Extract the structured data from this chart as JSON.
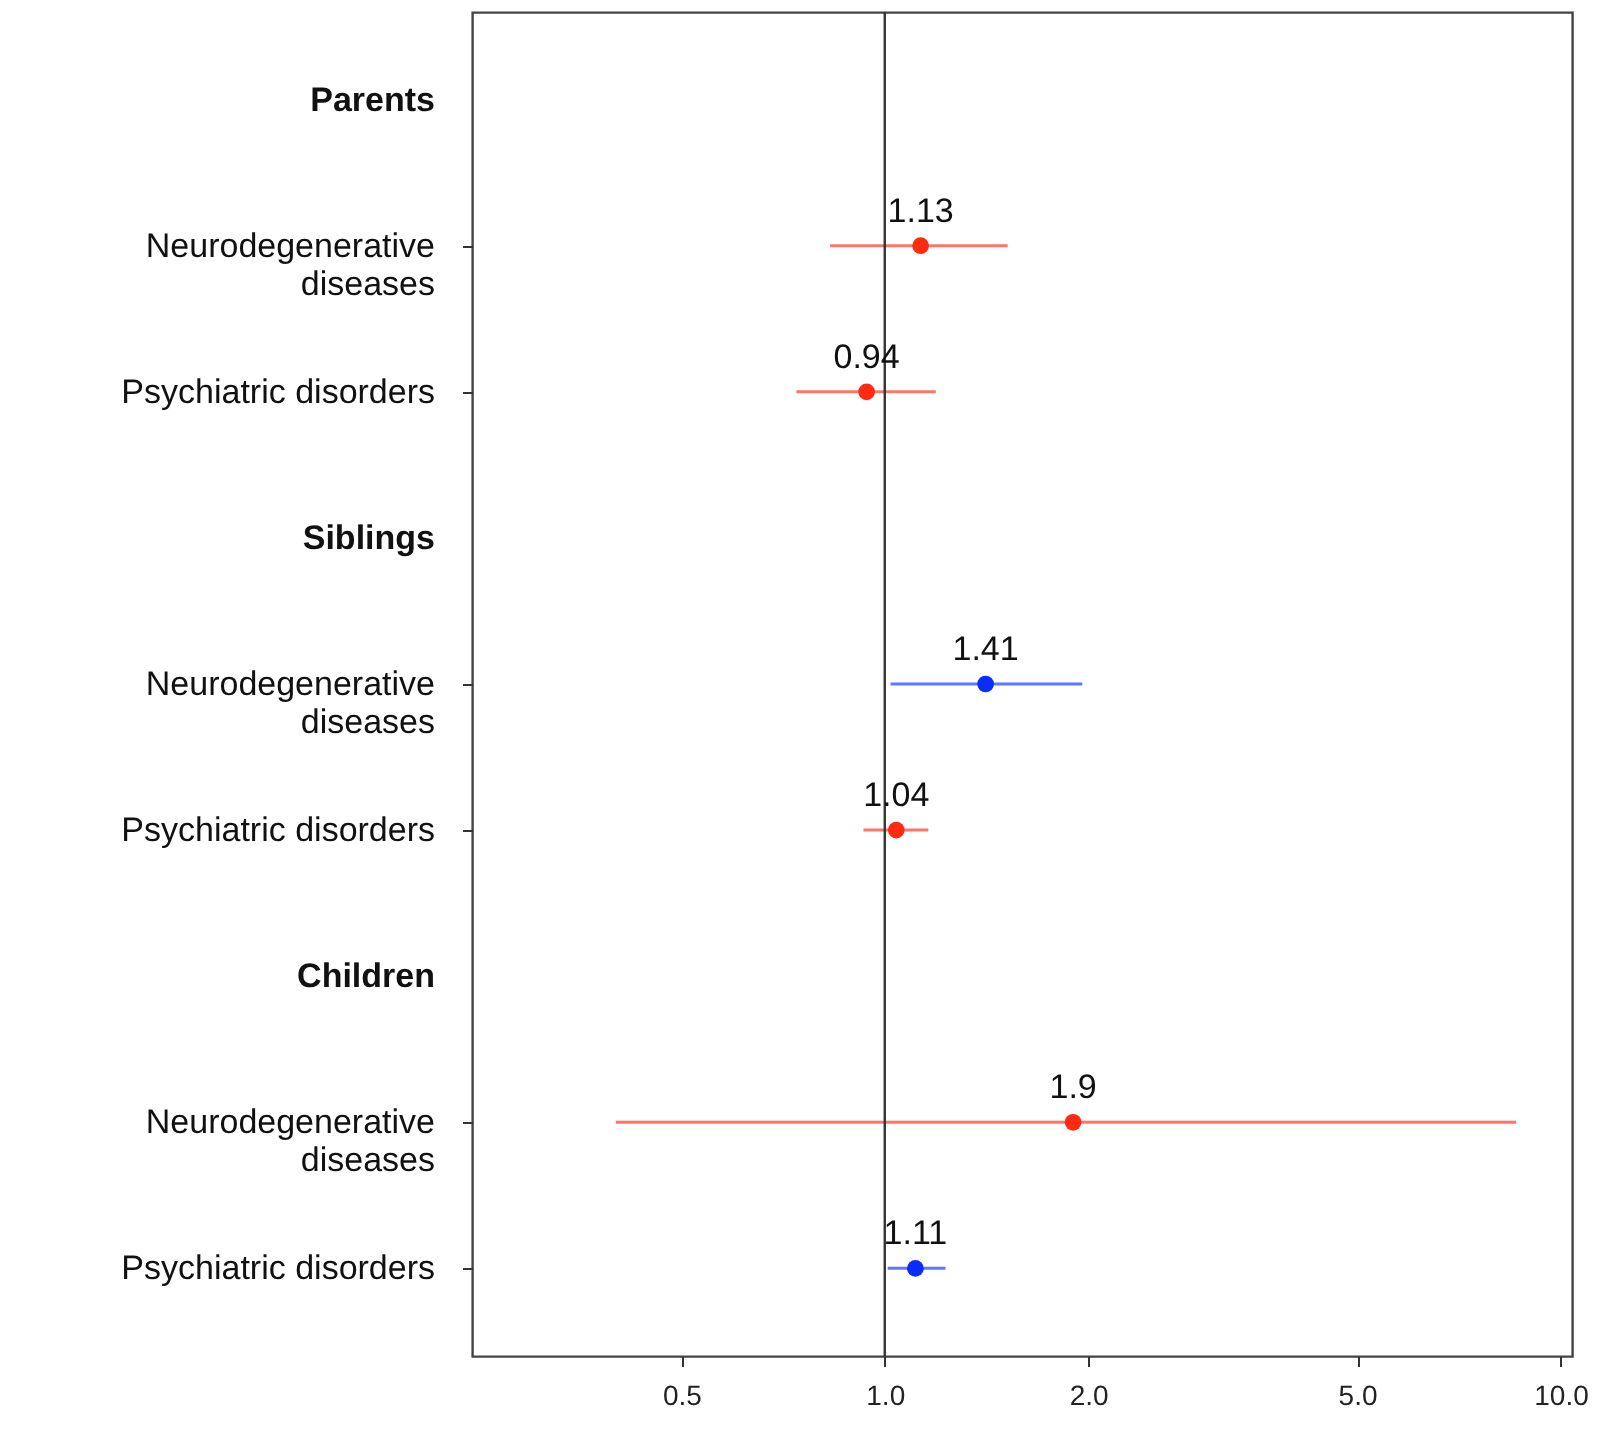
{
  "chart_data": {
    "type": "scatter",
    "orientation": "horizontal",
    "categories": [
      "Parents",
      "Neurodegenerative diseases",
      "Psychiatric disorders",
      "Siblings",
      "Neurodegenerative diseases",
      "Psychiatric disorders",
      "Children",
      "Neurodegenerative diseases",
      "Psychiatric disorders"
    ],
    "values": [
      null,
      1.13,
      0.94,
      null,
      1.41,
      1.04,
      null,
      1.9,
      1.11
    ],
    "errors": [
      null,
      [
        0.83,
        1.52
      ],
      [
        0.74,
        1.19
      ],
      null,
      [
        1.02,
        1.96
      ],
      [
        0.93,
        1.16
      ],
      null,
      [
        0.4,
        8.6
      ],
      [
        1.01,
        1.23
      ]
    ],
    "colors": [
      null,
      "#ff2a12",
      "#ff2a12",
      null,
      "#0a2cff",
      "#ff2a12",
      null,
      "#ff2a12",
      "#0a2cff"
    ],
    "log": "x",
    "xlim": [
      0.245,
      10.4
    ],
    "xticks": [
      {
        "value": 0.5,
        "label": "0.5"
      },
      {
        "value": 1,
        "label": "1.0"
      },
      {
        "value": 2,
        "label": "2.0"
      },
      {
        "value": 5,
        "label": "5.0"
      },
      {
        "value": 10,
        "label": "10.0"
      }
    ],
    "ref_lines": [
      {
        "axis": "x",
        "value": 1,
        "color": "#333333"
      }
    ],
    "data_labels": true,
    "marker": "circle",
    "grid": false
  }
}
